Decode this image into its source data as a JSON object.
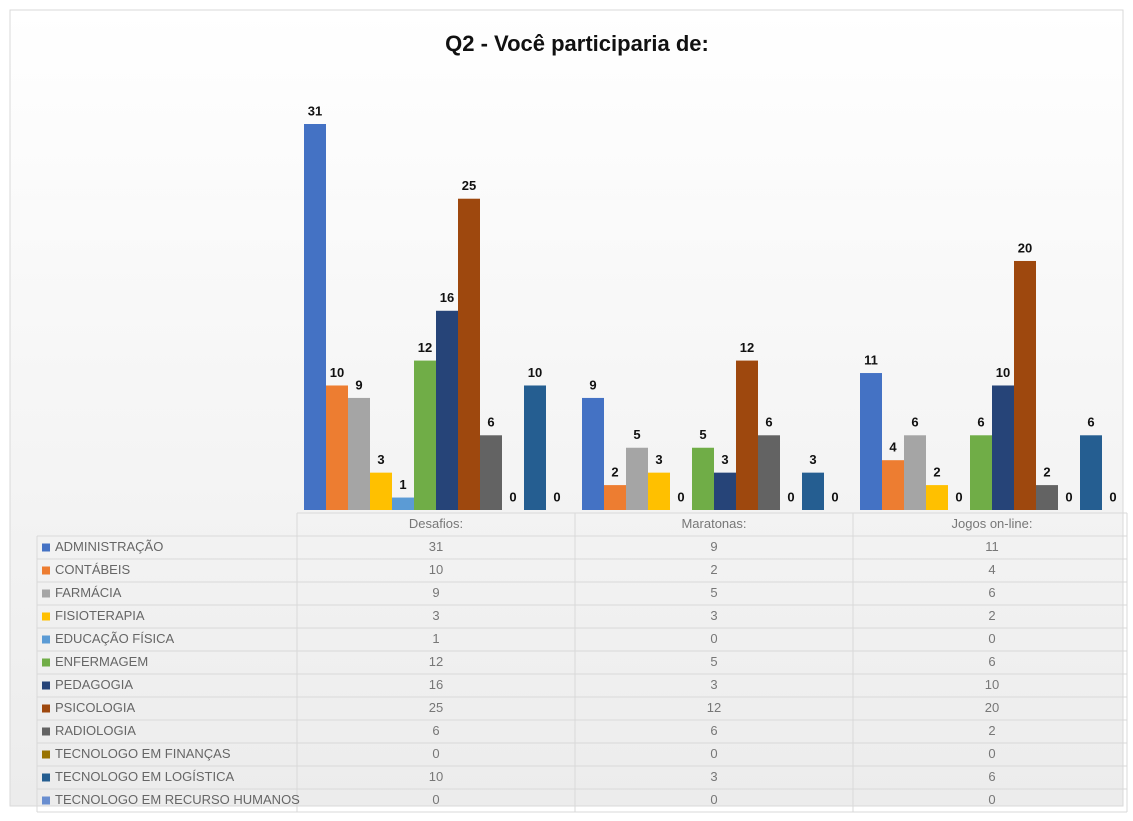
{
  "chart_data": {
    "type": "bar",
    "title": "Q2 - Você participaria de:",
    "categories": [
      "Desafios:",
      "Maratonas:",
      "Jogos on-line:"
    ],
    "series": [
      {
        "name": "ADMINISTRAÇÃO",
        "color": "#4472c4",
        "values": [
          31,
          9,
          11
        ]
      },
      {
        "name": "CONTÁBEIS",
        "color": "#ed7d31",
        "values": [
          10,
          2,
          4
        ]
      },
      {
        "name": "FARMÁCIA",
        "color": "#a5a5a5",
        "values": [
          9,
          5,
          6
        ]
      },
      {
        "name": "FISIOTERAPIA",
        "color": "#ffc000",
        "values": [
          3,
          3,
          2
        ]
      },
      {
        "name": "EDUCAÇÃO FÍSICA",
        "color": "#5b9bd5",
        "values": [
          1,
          0,
          0
        ]
      },
      {
        "name": "ENFERMAGEM",
        "color": "#70ad47",
        "values": [
          12,
          5,
          6
        ]
      },
      {
        "name": "PEDAGOGIA",
        "color": "#264478",
        "values": [
          16,
          3,
          10
        ]
      },
      {
        "name": "PSICOLOGIA",
        "color": "#9e480e",
        "values": [
          25,
          12,
          20
        ]
      },
      {
        "name": "RADIOLOGIA",
        "color": "#636363",
        "values": [
          6,
          6,
          2
        ]
      },
      {
        "name": "TECNOLOGO EM FINANÇAS",
        "color": "#997300",
        "values": [
          0,
          0,
          0
        ]
      },
      {
        "name": "TECNOLOGO EM LOGÍSTICA",
        "color": "#255e91",
        "values": [
          10,
          3,
          6
        ]
      },
      {
        "name": "TECNOLOGO EM RECURSO HUMANOS",
        "color": "#698ed0",
        "values": [
          0,
          0,
          0
        ]
      }
    ]
  }
}
